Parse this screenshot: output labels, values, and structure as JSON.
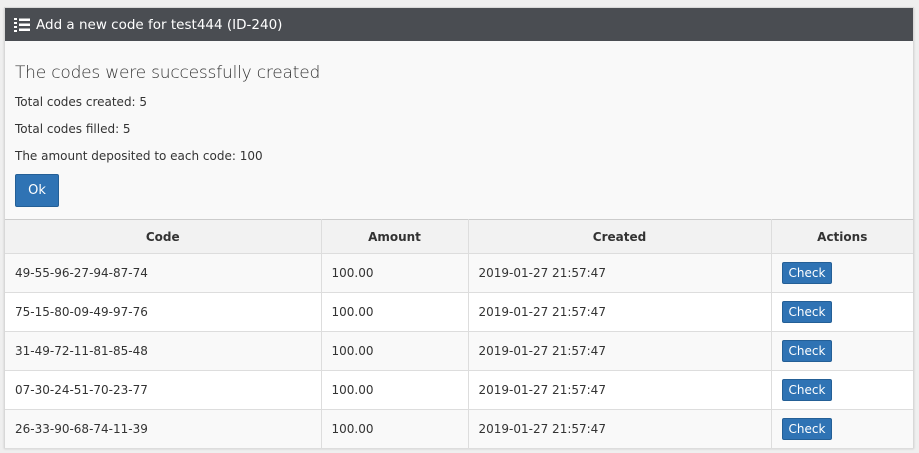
{
  "panel": {
    "title": "Add a new code for test444 (ID-240)",
    "icon": "list-ol-icon"
  },
  "result": {
    "heading": "The codes were successfully created",
    "lines": [
      "Total codes created: 5",
      "Total codes filled: 5",
      "The amount deposited to each code: 100"
    ],
    "ok_label": "Ok"
  },
  "table": {
    "headers": [
      "Code",
      "Amount",
      "Created",
      "Actions"
    ],
    "rows": [
      {
        "code": "49-55-96-27-94-87-74",
        "amount": "100.00",
        "created": "2019-01-27 21:57:47",
        "action": "Check"
      },
      {
        "code": "75-15-80-09-49-97-76",
        "amount": "100.00",
        "created": "2019-01-27 21:57:47",
        "action": "Check"
      },
      {
        "code": "31-49-72-11-81-85-48",
        "amount": "100.00",
        "created": "2019-01-27 21:57:47",
        "action": "Check"
      },
      {
        "code": "07-30-24-51-70-23-77",
        "amount": "100.00",
        "created": "2019-01-27 21:57:47",
        "action": "Check"
      },
      {
        "code": "26-33-90-68-74-11-39",
        "amount": "100.00",
        "created": "2019-01-27 21:57:47",
        "action": "Check"
      }
    ]
  },
  "colors": {
    "header_bg": "#4a4d52",
    "button": "#2f73b4"
  }
}
